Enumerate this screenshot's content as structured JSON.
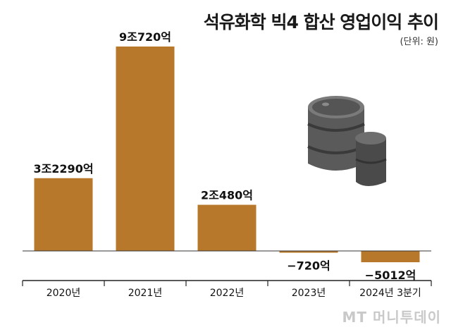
{
  "chart_data": {
    "type": "bar",
    "title": "석유화학 빅4 합산 영업이익 추이",
    "unit_note": "(단위: 원)",
    "categories": [
      "2020년",
      "2021년",
      "2022년",
      "2023년",
      "2024년 3분기"
    ],
    "values": [
      32290,
      90720,
      20480,
      -720,
      -5012
    ],
    "value_unit": "억원",
    "data_labels": [
      "3조2290억",
      "9조720억",
      "2조480억",
      "−720억",
      "−5012억"
    ],
    "ylim": [
      -8000,
      90720
    ],
    "grid": false,
    "legend": "none",
    "bar_color": "#b8782b"
  },
  "watermark": "MT 머니투데이",
  "colors": {
    "bar": "#b8782b",
    "axis": "#222222",
    "barrel_dark": "#4a4a4a",
    "barrel_mid": "#6e6e6e"
  },
  "decorations": [
    "oil-barrel-icon"
  ]
}
